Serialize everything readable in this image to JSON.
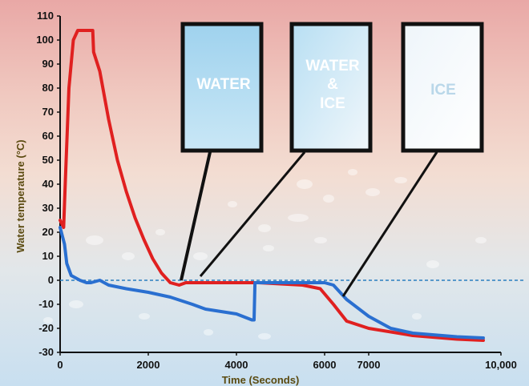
{
  "chart_data": {
    "type": "line",
    "ylabel": "Water temperature (°C)",
    "xlabel": "Time (Seconds)",
    "xlim": [
      0,
      10000
    ],
    "ylim": [
      -30,
      110
    ],
    "y_ticks": [
      "110",
      "100",
      "90",
      "80",
      "70",
      "60",
      "50",
      "40",
      "30",
      "20",
      "10",
      "0",
      "-10",
      "-20",
      "-30"
    ],
    "x_ticks": [
      {
        "label": "0",
        "value": 0
      },
      {
        "label": "2000",
        "value": 2000
      },
      {
        "label": "4000",
        "value": 4000
      },
      {
        "label": "6000",
        "value": 6000
      },
      {
        "label": "7000",
        "value": 7000
      },
      {
        "label": "10,000",
        "value": 10000
      }
    ],
    "zero_line": {
      "value": 0,
      "style": "dashed",
      "color": "#2a7fc0"
    },
    "series": [
      {
        "color": "#e02020",
        "points": [
          [
            0,
            25
          ],
          [
            80,
            22
          ],
          [
            120,
            42
          ],
          [
            200,
            80
          ],
          [
            300,
            100
          ],
          [
            400,
            104
          ],
          [
            700,
            104
          ],
          [
            740,
            104
          ],
          [
            760,
            95
          ],
          [
            900,
            87
          ],
          [
            1100,
            67
          ],
          [
            1300,
            50
          ],
          [
            1500,
            37
          ],
          [
            1700,
            26
          ],
          [
            1900,
            17
          ],
          [
            2100,
            9
          ],
          [
            2300,
            3
          ],
          [
            2500,
            -1
          ],
          [
            2700,
            -2
          ],
          [
            2850,
            -1
          ],
          [
            3500,
            -1
          ],
          [
            4500,
            -1
          ],
          [
            5000,
            -1.5
          ],
          [
            5500,
            -2
          ],
          [
            5900,
            -3.5
          ],
          [
            6200,
            -10
          ],
          [
            6500,
            -17
          ],
          [
            7000,
            -20
          ],
          [
            8000,
            -23
          ],
          [
            9000,
            -24.5
          ],
          [
            9600,
            -25
          ]
        ]
      },
      {
        "color": "#2a6fd0",
        "points": [
          [
            0,
            22
          ],
          [
            100,
            15
          ],
          [
            150,
            7
          ],
          [
            250,
            2
          ],
          [
            450,
            0
          ],
          [
            600,
            -1
          ],
          [
            700,
            -1
          ],
          [
            900,
            0
          ],
          [
            1100,
            -2
          ],
          [
            1500,
            -3.5
          ],
          [
            2000,
            -5
          ],
          [
            2500,
            -7
          ],
          [
            3000,
            -10
          ],
          [
            3300,
            -12
          ],
          [
            4000,
            -14
          ],
          [
            4350,
            -16.5
          ],
          [
            4400,
            -16.5
          ],
          [
            4420,
            -1
          ],
          [
            4600,
            -1
          ],
          [
            5000,
            -1
          ],
          [
            5500,
            -1
          ],
          [
            6000,
            -1
          ],
          [
            6200,
            -2
          ],
          [
            6500,
            -8
          ],
          [
            7000,
            -15
          ],
          [
            7500,
            -20
          ],
          [
            8000,
            -22
          ],
          [
            9000,
            -23.5
          ],
          [
            9600,
            -24
          ]
        ]
      }
    ]
  },
  "panels": [
    {
      "text": "WATER",
      "color": "#bfe2f2",
      "lines": [
        "WATER"
      ]
    },
    {
      "text": "WATER & ICE",
      "color": "#d6ecf6",
      "lines": [
        "WATER",
        "&",
        "ICE"
      ]
    },
    {
      "text": "ICE",
      "color": "#f0f6fa",
      "lines": [
        "ICE"
      ]
    }
  ],
  "colors": {
    "background_top": "#e9a8a6",
    "background_bottom": "#c8dff0",
    "ice_text": "#b9d7e9"
  }
}
